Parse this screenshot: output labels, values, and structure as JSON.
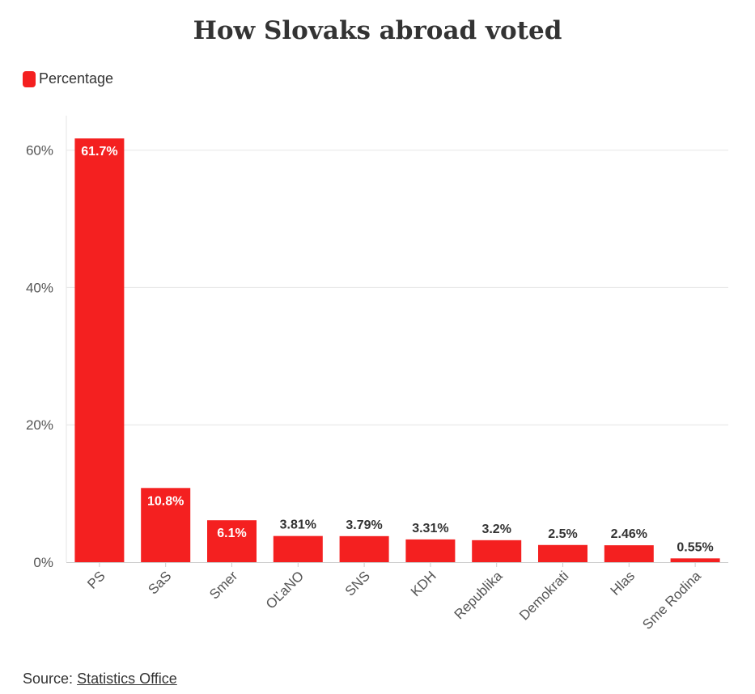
{
  "chart_data": {
    "type": "bar",
    "title": "How Slovaks abroad voted",
    "categories": [
      "PS",
      "SaS",
      "Smer",
      "OĽaNO",
      "SNS",
      "KDH",
      "Republika",
      "Demokrati",
      "Hlas",
      "Sme Rodina"
    ],
    "series": [
      {
        "name": "Percentage",
        "values": [
          61.7,
          10.8,
          6.1,
          3.81,
          3.79,
          3.31,
          3.2,
          2.5,
          2.46,
          0.55
        ],
        "labels": [
          "61.7%",
          "10.8%",
          "6.1%",
          "3.81%",
          "3.79%",
          "3.31%",
          "3.2%",
          "2.5%",
          "2.46%",
          "0.55%"
        ],
        "color": "#f42020"
      }
    ],
    "yticks": [
      0,
      20,
      40,
      60
    ],
    "ytick_labels": [
      "0%",
      "20%",
      "40%",
      "60%"
    ],
    "ylim": [
      0,
      65
    ],
    "xlabel": "",
    "ylabel": "",
    "legend_position": "top-left",
    "grid": true
  },
  "source": {
    "prefix": "Source:",
    "link_text": "Statistics Office"
  },
  "colors": {
    "bar": "#f42020",
    "inside_label": "#ffffff",
    "outside_label": "#333333",
    "grid": "#e6e6e6",
    "axis": "#cccccc"
  }
}
